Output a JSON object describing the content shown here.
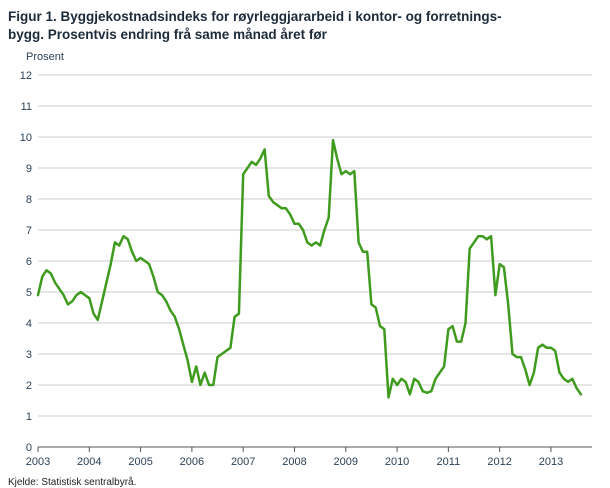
{
  "title": {
    "line1": "Figur 1. Byggjekostnadsindeks for røyrleggjararbeid i kontor- og forretnings-",
    "line2": "bygg. Prosentvis endring frå same månad året før"
  },
  "source": "Kjelde: Statistisk sentralbyrå.",
  "chart_data": {
    "type": "line",
    "title": "Figur 1. Byggjekostnadsindeks for røyrleggjararbeid i kontor- og forretningsbygg. Prosentvis endring frå same månad året før",
    "xlabel": "",
    "ylabel": "Prosent",
    "ylim": [
      0,
      12
    ],
    "xlim": [
      2003,
      2013.8
    ],
    "x_start": 2003.0,
    "x_interval_months": 1,
    "x_ticks": [
      2003,
      2004,
      2005,
      2006,
      2007,
      2008,
      2009,
      2010,
      2011,
      2012,
      2013
    ],
    "y_ticks": [
      0,
      1,
      2,
      3,
      4,
      5,
      6,
      7,
      8,
      9,
      10,
      11,
      12
    ],
    "grid": true,
    "legend": "none",
    "line_color": "#3e9b1e",
    "grid_color": "#cccccc",
    "axis_color": "#555555",
    "text_color": "#2b4257",
    "series": [
      {
        "name": "Prosentvis endring frå same månad året før",
        "values": [
          4.9,
          5.5,
          5.7,
          5.6,
          5.3,
          5.1,
          4.9,
          4.6,
          4.7,
          4.9,
          5.0,
          4.9,
          4.8,
          4.3,
          4.1,
          4.7,
          5.3,
          5.9,
          6.6,
          6.5,
          6.8,
          6.7,
          6.3,
          6.0,
          6.1,
          6.0,
          5.9,
          5.5,
          5.0,
          4.9,
          4.7,
          4.4,
          4.2,
          3.8,
          3.3,
          2.8,
          2.1,
          2.6,
          2.0,
          2.4,
          2.0,
          2.0,
          2.9,
          3.0,
          3.1,
          3.2,
          4.2,
          4.3,
          8.8,
          9.0,
          9.2,
          9.1,
          9.3,
          9.6,
          8.1,
          7.9,
          7.8,
          7.7,
          7.7,
          7.5,
          7.2,
          7.2,
          7.0,
          6.6,
          6.5,
          6.6,
          6.5,
          7.0,
          7.4,
          9.9,
          9.3,
          8.8,
          8.9,
          8.8,
          8.9,
          6.6,
          6.3,
          6.3,
          4.6,
          4.5,
          3.9,
          3.8,
          1.6,
          2.2,
          2.0,
          2.2,
          2.1,
          1.7,
          2.2,
          2.1,
          1.8,
          1.75,
          1.8,
          2.2,
          2.4,
          2.6,
          3.8,
          3.9,
          3.4,
          3.4,
          4.0,
          6.4,
          6.6,
          6.8,
          6.8,
          6.7,
          6.8,
          4.9,
          5.9,
          5.8,
          4.6,
          3.0,
          2.9,
          2.9,
          2.5,
          2.0,
          2.4,
          3.2,
          3.3,
          3.2,
          3.2,
          3.1,
          2.4,
          2.2,
          2.1,
          2.2,
          1.9,
          1.7
        ]
      }
    ]
  }
}
